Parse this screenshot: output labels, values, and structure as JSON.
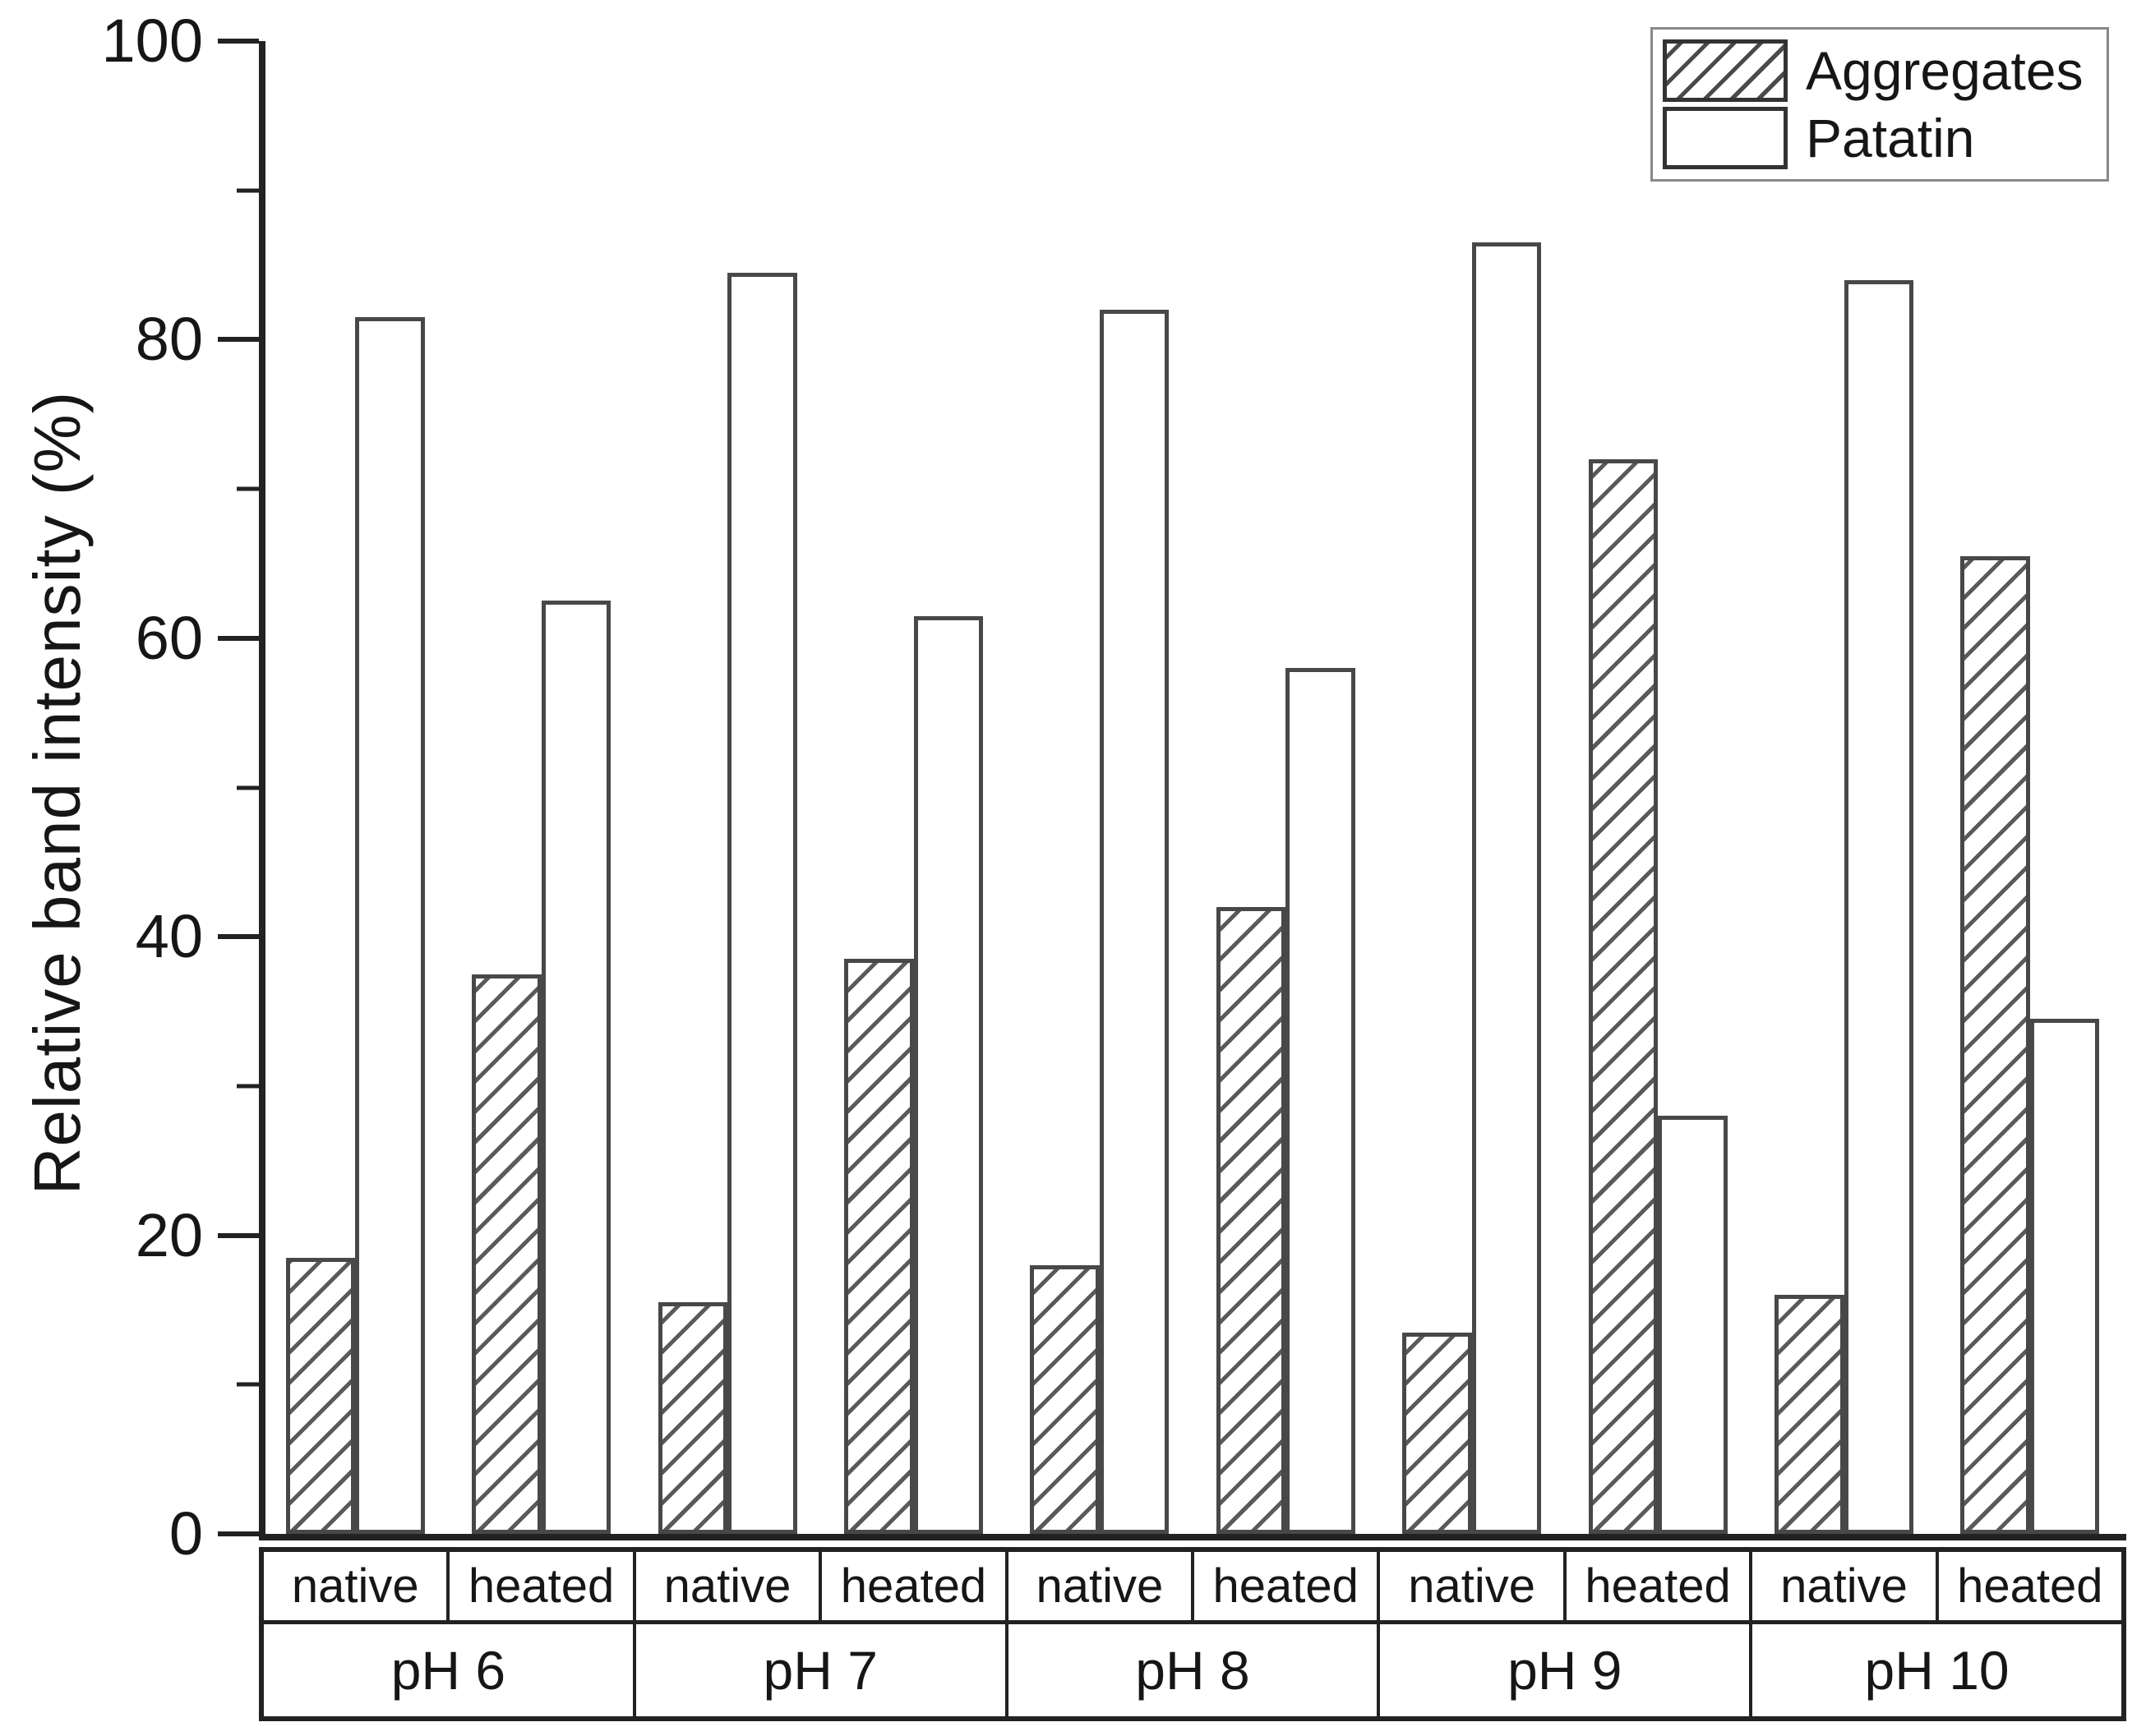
{
  "figure": {
    "background": "#ffffff",
    "description": "Grouped bar chart of relative band intensity of aggregates and patatin for native and heated samples at pH 6 to pH 10"
  },
  "chart_data": {
    "type": "bar",
    "title": "",
    "xlabel": "",
    "ylabel": "Relative band intensity (%)",
    "ylim": [
      0,
      100
    ],
    "y_major_ticks": [
      0,
      20,
      40,
      60,
      80,
      100
    ],
    "y_minor_ticks": [
      10,
      30,
      50,
      70,
      90
    ],
    "grid": false,
    "legend_position": "top-right",
    "series": [
      {
        "name": "Aggregates",
        "style": "hatched"
      },
      {
        "name": "Patatin",
        "style": "open"
      }
    ],
    "groups": [
      {
        "label": "pH 6",
        "cells": [
          {
            "condition": "native",
            "values": [
              18.5,
              81.5
            ]
          },
          {
            "condition": "heated",
            "values": [
              37.5,
              62.5
            ]
          }
        ]
      },
      {
        "label": "pH 7",
        "cells": [
          {
            "condition": "native",
            "values": [
              15.5,
              84.5
            ]
          },
          {
            "condition": "heated",
            "values": [
              38.5,
              61.5
            ]
          }
        ]
      },
      {
        "label": "pH 8",
        "cells": [
          {
            "condition": "native",
            "values": [
              18,
              82
            ]
          },
          {
            "condition": "heated",
            "values": [
              42,
              58
            ]
          }
        ]
      },
      {
        "label": "pH 9",
        "cells": [
          {
            "condition": "native",
            "values": [
              13.5,
              86.5
            ]
          },
          {
            "condition": "heated",
            "values": [
              72,
              28
            ]
          }
        ]
      },
      {
        "label": "pH 10",
        "cells": [
          {
            "condition": "native",
            "values": [
              16,
              84
            ]
          },
          {
            "condition": "heated",
            "values": [
              65.5,
              34.5
            ]
          }
        ]
      }
    ]
  },
  "colors": {
    "background": "#ffffff",
    "axis": "#222222",
    "bar_border": "#484848",
    "hatch_line": "#5a5a5a",
    "text": "#161616",
    "legend_border": "#888888"
  }
}
